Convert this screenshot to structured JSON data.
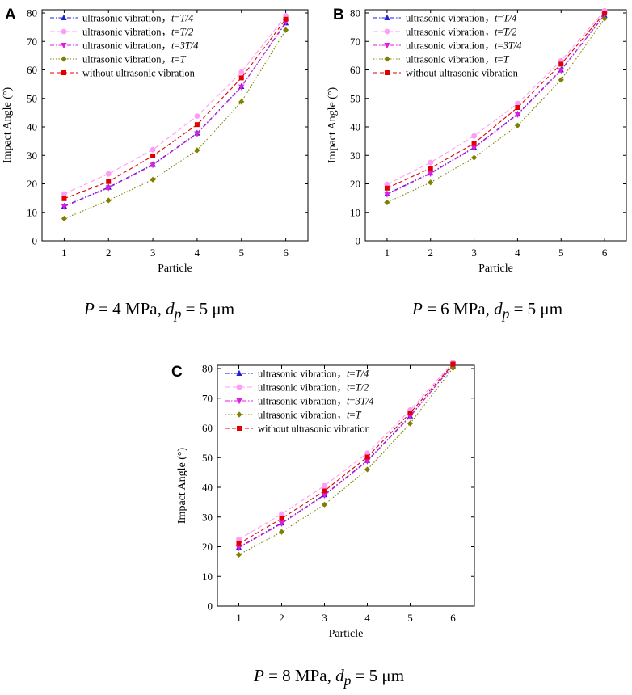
{
  "chart_data": [
    {
      "type": "line",
      "panel": "A",
      "caption": {
        "p_var": "P",
        "p_val": " = 4 MPa, ",
        "d_var": "d",
        "d_sub": "p",
        "d_val": " = 5 μm"
      },
      "xlabel": "Particle",
      "ylabel": "Impact Angle (°)",
      "categories": [
        1,
        2,
        3,
        4,
        5,
        6
      ],
      "ylim": [
        0,
        80
      ],
      "yticks": [
        0,
        10,
        20,
        30,
        40,
        50,
        60,
        70,
        80
      ],
      "legend_position": "top-left",
      "series": [
        {
          "name_prefix": "ultrasonic vibration，",
          "name_var": "t",
          "name_eq": "=",
          "name_rest": "T/4",
          "color": "#1f1fd6",
          "marker": "triangle-up",
          "dash": "5,2,1.5,2",
          "values": [
            12.2,
            18.8,
            26.8,
            37.8,
            54.2,
            76.5
          ]
        },
        {
          "name_prefix": "ultrasonic vibration，",
          "name_var": "t",
          "name_eq": "=",
          "name_rest": "T/2",
          "color": "#ff9cf5",
          "marker": "circle",
          "dash": "6,3",
          "values": [
            16.5,
            23.5,
            32.0,
            43.8,
            59.2,
            79.0
          ]
        },
        {
          "name_prefix": "ultrasonic vibration，",
          "name_var": "t",
          "name_eq": "=",
          "name_rest": "3T/4",
          "color": "#e01be0",
          "marker": "triangle-down",
          "dash": "5,2,1.5,2",
          "values": [
            12.0,
            18.6,
            26.6,
            37.6,
            54.0,
            76.8
          ]
        },
        {
          "name_prefix": "ultrasonic vibration，",
          "name_var": "t",
          "name_eq": "=",
          "name_rest": "T",
          "color": "#808000",
          "marker": "diamond",
          "dash": "1.5,2",
          "values": [
            7.8,
            14.2,
            21.5,
            31.8,
            48.8,
            74.0
          ]
        },
        {
          "name_prefix": "without ultrasonic vibration",
          "name_var": "",
          "name_eq": "",
          "name_rest": "",
          "color": "#e00000",
          "marker": "square",
          "dash": "5,3",
          "values": [
            14.8,
            20.8,
            29.8,
            40.8,
            57.2,
            77.8
          ]
        }
      ]
    },
    {
      "type": "line",
      "panel": "B",
      "caption": {
        "p_var": "P",
        "p_val": " = 6 MPa, ",
        "d_var": "d",
        "d_sub": "p",
        "d_val": " = 5 μm"
      },
      "xlabel": "Particle",
      "ylabel": "Impact Angle (°)",
      "categories": [
        1,
        2,
        3,
        4,
        5,
        6
      ],
      "ylim": [
        0,
        80
      ],
      "yticks": [
        0,
        10,
        20,
        30,
        40,
        50,
        60,
        70,
        80
      ],
      "legend_position": "top-left",
      "series": [
        {
          "name_prefix": "ultrasonic vibration，",
          "name_var": "t",
          "name_eq": "=",
          "name_rest": "T/4",
          "color": "#1f1fd6",
          "marker": "triangle-up",
          "dash": "5,2,1.5,2",
          "values": [
            16.5,
            23.8,
            32.8,
            44.5,
            60.0,
            79.2
          ]
        },
        {
          "name_prefix": "ultrasonic vibration，",
          "name_var": "t",
          "name_eq": "=",
          "name_rest": "T/2",
          "color": "#ff9cf5",
          "marker": "circle",
          "dash": "6,3",
          "values": [
            19.8,
            27.5,
            36.8,
            48.2,
            63.2,
            80.8
          ]
        },
        {
          "name_prefix": "ultrasonic vibration，",
          "name_var": "t",
          "name_eq": "=",
          "name_rest": "3T/4",
          "color": "#e01be0",
          "marker": "triangle-down",
          "dash": "5,2,1.5,2",
          "values": [
            16.3,
            23.6,
            32.6,
            44.3,
            59.8,
            79.4
          ]
        },
        {
          "name_prefix": "ultrasonic vibration，",
          "name_var": "t",
          "name_eq": "=",
          "name_rest": "T",
          "color": "#808000",
          "marker": "diamond",
          "dash": "1.5,2",
          "values": [
            13.5,
            20.5,
            29.2,
            40.5,
            56.5,
            78.0
          ]
        },
        {
          "name_prefix": "without ultrasonic vibration",
          "name_var": "",
          "name_eq": "",
          "name_rest": "",
          "color": "#e00000",
          "marker": "square",
          "dash": "5,3",
          "values": [
            18.5,
            25.5,
            34.2,
            46.8,
            62.0,
            80.0
          ]
        }
      ]
    },
    {
      "type": "line",
      "panel": "C",
      "caption": {
        "p_var": "P",
        "p_val": " = 8 MPa, ",
        "d_var": "d",
        "d_sub": "p",
        "d_val": " = 5 μm"
      },
      "xlabel": "Particle",
      "ylabel": "Impact Angle (°)",
      "categories": [
        1,
        2,
        3,
        4,
        5,
        6
      ],
      "ylim": [
        0,
        80
      ],
      "yticks": [
        0,
        10,
        20,
        30,
        40,
        50,
        60,
        70,
        80
      ],
      "legend_position": "top-left",
      "series": [
        {
          "name_prefix": "ultrasonic vibration，",
          "name_var": "t",
          "name_eq": "=",
          "name_rest": "T/4",
          "color": "#1f1fd6",
          "marker": "triangle-up",
          "dash": "5,2,1.5,2",
          "values": [
            19.8,
            28.0,
            37.5,
            49.0,
            64.0,
            81.0
          ]
        },
        {
          "name_prefix": "ultrasonic vibration，",
          "name_var": "t",
          "name_eq": "=",
          "name_rest": "T/2",
          "color": "#ff9cf5",
          "marker": "circle",
          "dash": "6,3",
          "values": [
            22.5,
            31.0,
            40.5,
            51.5,
            66.0,
            82.0
          ]
        },
        {
          "name_prefix": "ultrasonic vibration，",
          "name_var": "t",
          "name_eq": "=",
          "name_rest": "3T/4",
          "color": "#e01be0",
          "marker": "triangle-down",
          "dash": "5,2,1.5,2",
          "values": [
            19.6,
            27.8,
            37.3,
            48.8,
            63.8,
            81.2
          ]
        },
        {
          "name_prefix": "ultrasonic vibration，",
          "name_var": "t",
          "name_eq": "=",
          "name_rest": "T",
          "color": "#808000",
          "marker": "diamond",
          "dash": "1.5,2",
          "values": [
            17.3,
            25.0,
            34.2,
            46.0,
            61.5,
            80.2
          ]
        },
        {
          "name_prefix": "without ultrasonic vibration",
          "name_var": "",
          "name_eq": "",
          "name_rest": "",
          "color": "#e00000",
          "marker": "square",
          "dash": "5,3",
          "values": [
            21.0,
            29.5,
            38.8,
            50.2,
            65.0,
            81.5
          ]
        }
      ]
    }
  ]
}
